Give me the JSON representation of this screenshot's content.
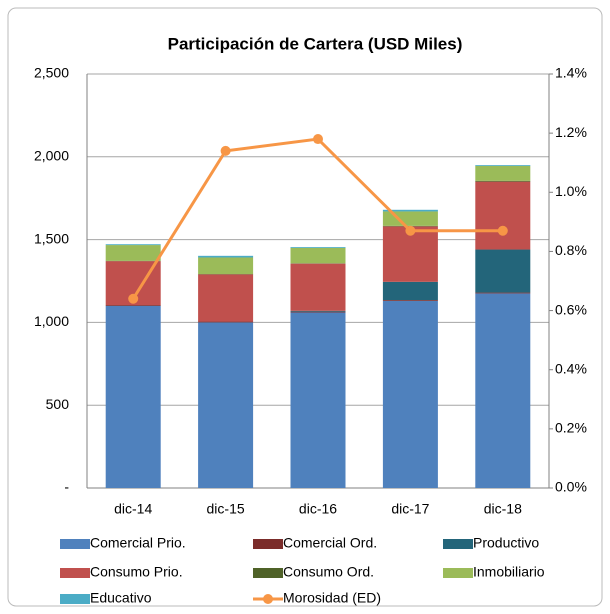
{
  "chart_data": {
    "type": "bar",
    "stacked": true,
    "title": "Participación de Cartera  (USD Miles)",
    "categories": [
      "dic-14",
      "dic-15",
      "dic-16",
      "dic-17",
      "dic-18"
    ],
    "series": [
      {
        "name": "Comercial Prio.",
        "color": "#4f81bd",
        "values": [
          1100,
          1000,
          1060,
          1130,
          1175
        ]
      },
      {
        "name": "Comercial Ord.",
        "color": "#7b2c2a",
        "values": [
          5,
          5,
          5,
          5,
          5
        ]
      },
      {
        "name": "Productivo",
        "color": "#23657a",
        "values": [
          0,
          0,
          5,
          110,
          260
        ]
      },
      {
        "name": "Consumo Prio.",
        "color": "#c0504d",
        "values": [
          265,
          285,
          285,
          335,
          410
        ]
      },
      {
        "name": "Consumo Ord.",
        "color": "#4f6228",
        "values": [
          2,
          2,
          2,
          3,
          5
        ]
      },
      {
        "name": "Inmobiliario",
        "color": "#9bbb59",
        "values": [
          95,
          100,
          93,
          87,
          90
        ]
      },
      {
        "name": "Educativo",
        "color": "#4bacc6",
        "values": [
          5,
          10,
          5,
          10,
          5
        ]
      },
      {
        "name": "Morosidad (ED)",
        "color": "#f79646",
        "type": "line",
        "axis": "y2",
        "values": [
          0.64,
          1.14,
          1.18,
          0.87,
          0.87
        ]
      }
    ],
    "ylim": [
      0,
      2500
    ],
    "yticks": [
      {
        "value": 0,
        "label": "-"
      },
      500,
      {
        "value": 1000,
        "label": "1,000"
      },
      {
        "value": 1500,
        "label": "1,500"
      },
      {
        "value": 2000,
        "label": "2,000"
      },
      {
        "value": 2500,
        "label": "2,500"
      }
    ],
    "y2lim": [
      0,
      1.4
    ],
    "y2ticks": [
      {
        "value": 0,
        "label": "0.0%"
      },
      {
        "value": 0.2,
        "label": "0.2%"
      },
      {
        "value": 0.4,
        "label": "0.4%"
      },
      {
        "value": 0.6,
        "label": "0.6%"
      },
      {
        "value": 0.8,
        "label": "0.8%"
      },
      {
        "value": 1.0,
        "label": "1.0%"
      },
      {
        "value": 1.2,
        "label": "1.2%"
      },
      {
        "value": 1.4,
        "label": "1.4%"
      }
    ],
    "grid": true,
    "legend": "bottom"
  }
}
